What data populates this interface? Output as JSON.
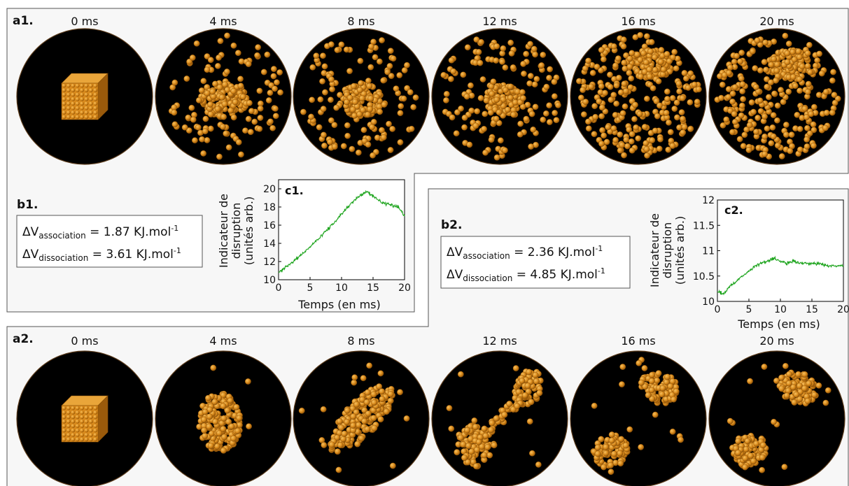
{
  "panels": {
    "a1": {
      "label": "a1.",
      "frames": [
        {
          "time": "0 ms",
          "state": "cube"
        },
        {
          "time": "4 ms",
          "state": "cluster-dispersing"
        },
        {
          "time": "8 ms",
          "state": "cluster-dispersing"
        },
        {
          "time": "12 ms",
          "state": "cluster-dispersing"
        },
        {
          "time": "16 ms",
          "state": "mostly-dispersed"
        },
        {
          "time": "20 ms",
          "state": "mostly-dispersed"
        }
      ]
    },
    "a2": {
      "label": "a2.",
      "frames": [
        {
          "time": "0 ms",
          "state": "cube"
        },
        {
          "time": "4 ms",
          "state": "compact-cluster"
        },
        {
          "time": "8 ms",
          "state": "elongated-cluster"
        },
        {
          "time": "12 ms",
          "state": "dumbbell"
        },
        {
          "time": "16 ms",
          "state": "two-clusters"
        },
        {
          "time": "20 ms",
          "state": "two-clusters"
        }
      ]
    },
    "b1": {
      "label": "b1.",
      "rows": [
        {
          "symbol": "ΔV",
          "subscript": "association",
          "value": " = 1.87 KJ.mol",
          "superscript": "-1"
        },
        {
          "symbol": "ΔV",
          "subscript": "dissociation",
          "value": " = 3.61 KJ.mol",
          "superscript": "-1"
        }
      ]
    },
    "b2": {
      "label": "b2.",
      "rows": [
        {
          "symbol": "ΔV",
          "subscript": "association",
          "value": " = 2.36 KJ.mol",
          "superscript": "-1"
        },
        {
          "symbol": "ΔV",
          "subscript": "dissociation",
          "value": " = 4.85 KJ.mol",
          "superscript": "-1"
        }
      ]
    }
  },
  "colors": {
    "particle": "#d98a1c",
    "particle_dark": "#8a4f06",
    "particle_light": "#f6c160",
    "background_disc": "#000000",
    "series_line": "#1aa31a",
    "panel_fill": "#f7f7f7"
  },
  "chart_data": [
    {
      "id": "c1",
      "type": "line",
      "title": "c1.",
      "xlabel": "Temps (en ms)",
      "ylabel": [
        "Indicateur de",
        "disruption",
        "(unités arb.)"
      ],
      "xlim": [
        0,
        20
      ],
      "ylim": [
        10,
        21
      ],
      "xticks": [
        0,
        5,
        10,
        15,
        20
      ],
      "yticks": [
        10,
        12,
        14,
        16,
        18,
        20
      ],
      "series": [
        {
          "x": [
            0,
            1,
            2,
            3,
            4,
            5,
            6,
            7,
            8,
            9,
            10,
            11,
            12,
            13,
            14,
            15,
            16,
            17,
            18,
            19,
            20
          ],
          "y": [
            10.8,
            11.3,
            11.8,
            12.4,
            13.0,
            13.6,
            14.3,
            15.0,
            15.7,
            16.4,
            17.2,
            18.0,
            18.7,
            19.3,
            19.7,
            19.2,
            18.7,
            18.3,
            18.2,
            18.0,
            17.0
          ]
        }
      ]
    },
    {
      "id": "c2",
      "type": "line",
      "title": "c2.",
      "xlabel": "Temps (en ms)",
      "ylabel": [
        "Indicateur de",
        "disruption",
        "(unités arb.)"
      ],
      "xlim": [
        0,
        20
      ],
      "ylim": [
        10,
        12
      ],
      "xticks": [
        0,
        5,
        10,
        15,
        20
      ],
      "xtick_labels": [
        "0",
        "5",
        "10",
        "15",
        "20"
      ],
      "yticks": [
        10,
        10.5,
        11,
        11.5,
        12
      ],
      "ytick_labels": [
        "10",
        "10.5",
        "11",
        "11.5",
        "12"
      ],
      "series": [
        {
          "x": [
            0,
            1,
            2,
            3,
            4,
            5,
            6,
            7,
            8,
            9,
            10,
            11,
            12,
            13,
            14,
            15,
            16,
            17,
            18,
            19,
            20
          ],
          "y": [
            10.2,
            10.15,
            10.3,
            10.4,
            10.5,
            10.6,
            10.7,
            10.75,
            10.8,
            10.85,
            10.8,
            10.75,
            10.8,
            10.75,
            10.75,
            10.75,
            10.75,
            10.72,
            10.7,
            10.7,
            10.7
          ]
        }
      ]
    }
  ]
}
